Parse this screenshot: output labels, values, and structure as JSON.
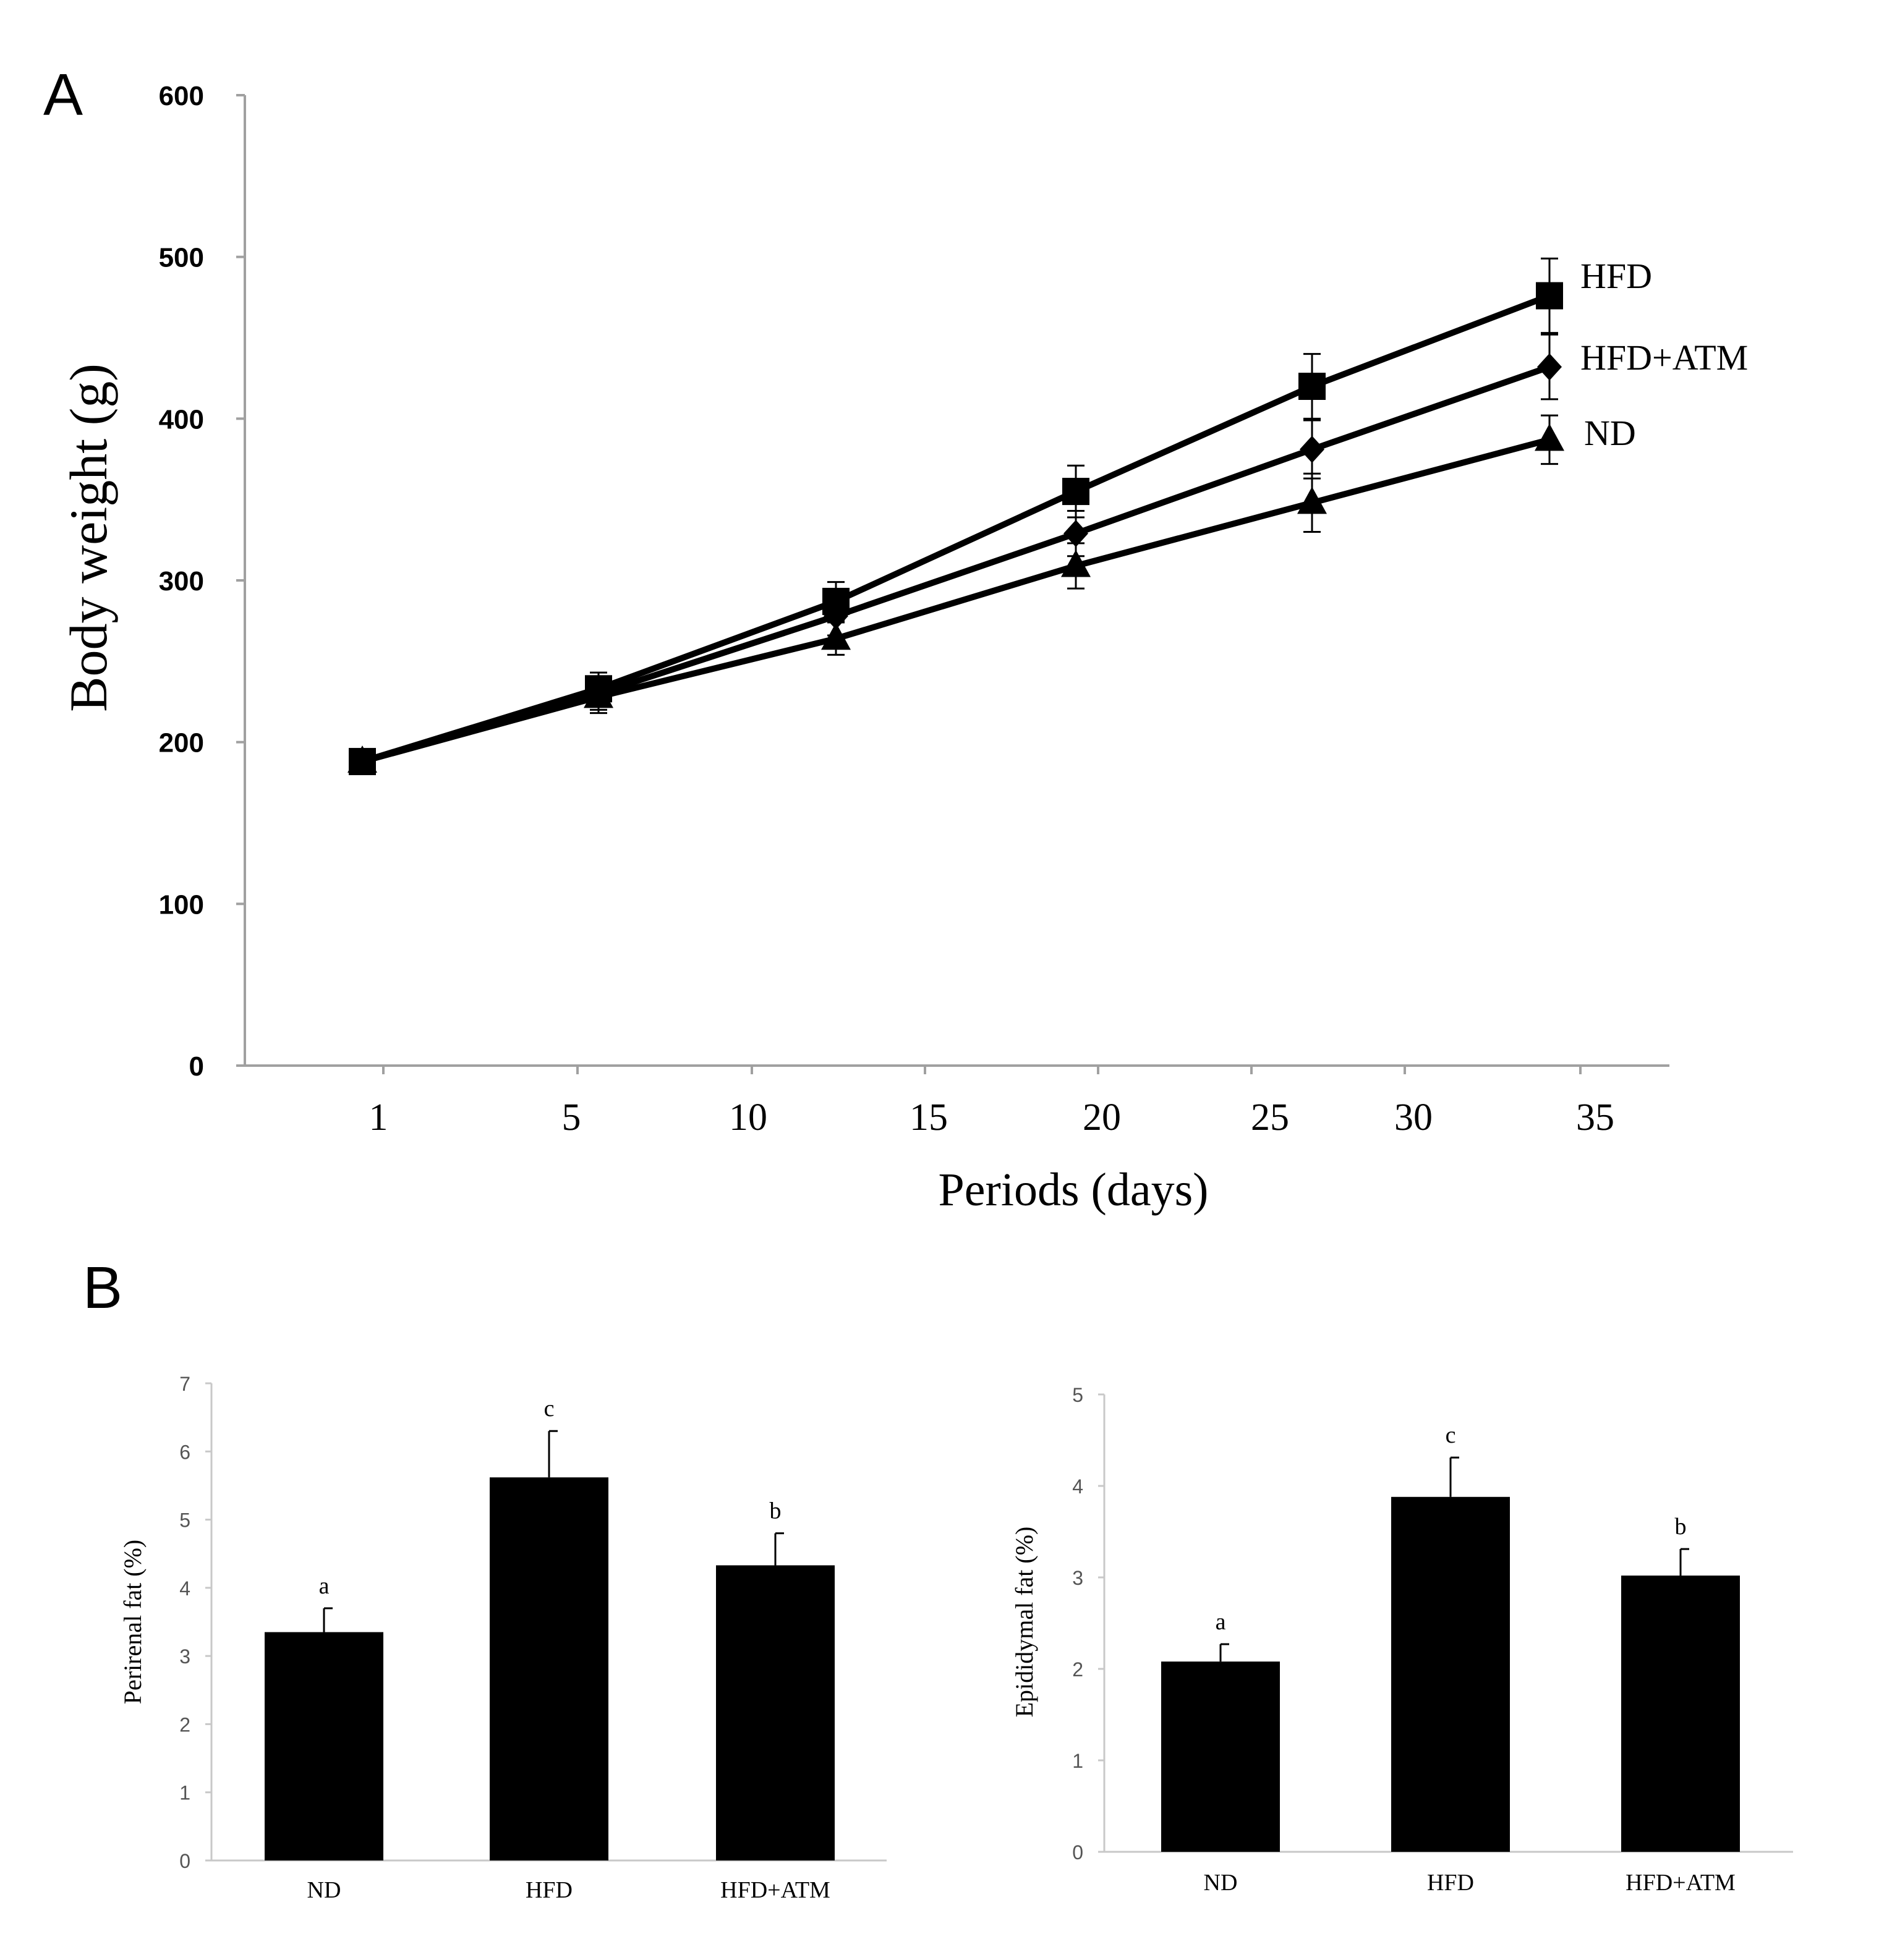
{
  "chart_data": [
    {
      "panel": "A",
      "type": "line",
      "xlabel": "Periods (days)",
      "ylabel": "Body weight (g)",
      "ylim": [
        0,
        600
      ],
      "y_ticks": [
        "0",
        "100",
        "200",
        "300",
        "400",
        "500",
        "600"
      ],
      "x_ticks": [
        "1",
        "5",
        "10",
        "15",
        "20",
        "25",
        "30",
        "35"
      ],
      "x": [
        1,
        7,
        14,
        21,
        28,
        35
      ],
      "series": [
        {
          "name": "HFD",
          "marker": "square",
          "values": [
            188,
            233,
            287,
            355,
            420,
            476
          ],
          "errors": [
            5,
            10,
            12,
            16,
            20,
            23
          ]
        },
        {
          "name": "HFD+ATM",
          "marker": "diamond",
          "values": [
            188,
            230,
            278,
            329,
            381,
            432
          ],
          "errors": [
            5,
            10,
            12,
            14,
            18,
            20
          ]
        },
        {
          "name": "ND",
          "marker": "triangle",
          "values": [
            188,
            228,
            264,
            309,
            348,
            387
          ],
          "errors": [
            5,
            10,
            10,
            14,
            18,
            15
          ]
        }
      ]
    },
    {
      "panel": "B",
      "type": "bar",
      "ylabel": "Perirenal fat (%)",
      "ylim": [
        0,
        7
      ],
      "y_ticks": [
        "0",
        "1",
        "2",
        "3",
        "4",
        "5",
        "6",
        "7"
      ],
      "categories": [
        "ND",
        "HFD",
        "HFD+ATM"
      ],
      "values": [
        3.35,
        5.62,
        4.33
      ],
      "errors": [
        0.35,
        0.68,
        0.47
      ],
      "annotations": [
        "a",
        "c",
        "b"
      ]
    },
    {
      "panel": "",
      "type": "bar",
      "ylabel": "Epididymal fat (%)",
      "ylim": [
        0,
        5
      ],
      "y_ticks": [
        "0",
        "1",
        "2",
        "3",
        "4",
        "5"
      ],
      "categories": [
        "ND",
        "HFD",
        "HFD+ATM"
      ],
      "values": [
        2.08,
        3.88,
        3.02
      ],
      "errors": [
        0.19,
        0.43,
        0.29
      ],
      "annotations": [
        "a",
        "c",
        "b"
      ]
    }
  ]
}
